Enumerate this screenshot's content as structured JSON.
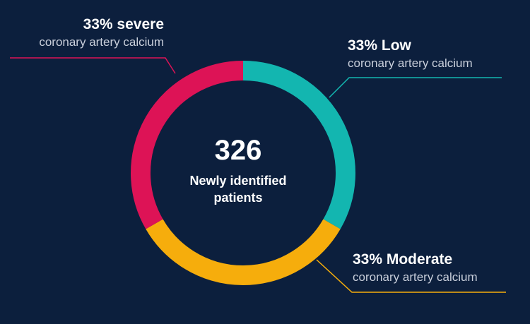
{
  "chart_data": {
    "type": "pie",
    "center": {
      "value": "326",
      "caption_line1": "Newly identified",
      "caption_line2": "patients"
    },
    "slices": [
      {
        "key": "low",
        "heading": "33% Low",
        "subtitle": "coronary artery calcium",
        "value": 33.3,
        "color": "#13b6b0"
      },
      {
        "key": "moderate",
        "heading": "33% Moderate",
        "subtitle": "coronary artery calcium",
        "value": 33.3,
        "color": "#f6ad0c"
      },
      {
        "key": "severe",
        "heading": "33% severe",
        "subtitle": "coronary artery calcium",
        "value": 33.3,
        "color": "#dd1356"
      }
    ]
  }
}
